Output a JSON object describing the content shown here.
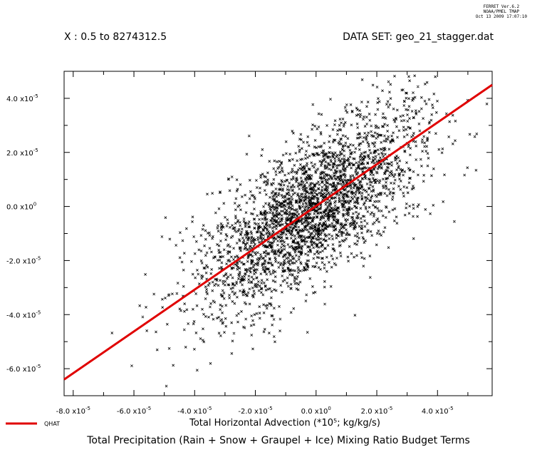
{
  "ferret_stamp": {
    "line1": "FERRET  Ver.6.2",
    "line2": "NOAA/PMEL TMAP",
    "line3": "Oct 13 2009 17:07:10"
  },
  "header": {
    "x_range": "X : 0.5 to 8274312.5",
    "dataset": "DATA SET: geo_21_stagger.dat"
  },
  "legend": {
    "label": "QHAT"
  },
  "colors": {
    "fit_line": "#e00000",
    "points": "#000000"
  },
  "chart_data": {
    "type": "scatter",
    "title": "Total Precipitation (Rain + Snow + Graupel + Ice) Mixing Ratio Budget Terms",
    "xlabel": "Total Horizontal Advection (*10⁵; kg/kg/s)",
    "ylabel": "",
    "xlim": [
      -8.3e-05,
      5.8e-05
    ],
    "ylim": [
      -7e-05,
      5e-05
    ],
    "x_ticks": [
      {
        "v": -8e-05,
        "m": "-8.0 x10",
        "e": "-5"
      },
      {
        "v": -6e-05,
        "m": "-6.0 x10",
        "e": "-5"
      },
      {
        "v": -4e-05,
        "m": "-4.0 x10",
        "e": "-5"
      },
      {
        "v": -2e-05,
        "m": "-2.0 x10",
        "e": "-5"
      },
      {
        "v": 0.0,
        "m": "0.0 x10",
        "e": "0"
      },
      {
        "v": 2e-05,
        "m": "2.0 x10",
        "e": "-5"
      },
      {
        "v": 4e-05,
        "m": "4.0 x10",
        "e": "-5"
      }
    ],
    "y_ticks": [
      {
        "v": 4e-05,
        "m": "4.0 x10",
        "e": "-5"
      },
      {
        "v": 2e-05,
        "m": "2.0 x10",
        "e": "-5"
      },
      {
        "v": 0.0,
        "m": "0.0 x10",
        "e": "0"
      },
      {
        "v": -2e-05,
        "m": "-2.0 x10",
        "e": "-5"
      },
      {
        "v": -4e-05,
        "m": "-4.0 x10",
        "e": "-5"
      },
      {
        "v": -6e-05,
        "m": "-6.0 x10",
        "e": "-5"
      }
    ],
    "fit_line": {
      "name": "QHAT",
      "x": [
        -8.3e-05,
        5.8e-05
      ],
      "y": [
        -6.4e-05,
        4.5e-05
      ]
    },
    "cloud": {
      "n_points": 9000,
      "dense_center": [
        3e-06,
        6e-06
      ],
      "dense_lower_left": [
        -4e-05,
        -3.8e-05
      ],
      "dense_upper_right": [
        3.6e-05,
        3.4e-05
      ],
      "spread_x": [
        8e-06,
        1.1e-05
      ],
      "spread_y": [
        1e-05,
        1.3e-05
      ]
    },
    "grid": false
  }
}
